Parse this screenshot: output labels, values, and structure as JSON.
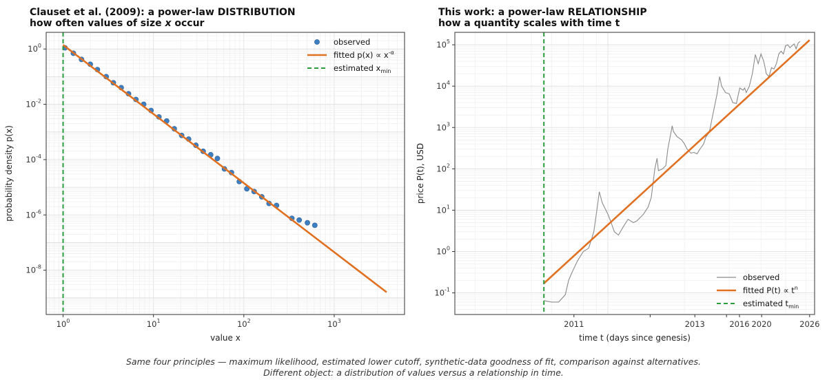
{
  "chart_data": [
    {
      "type": "scatter",
      "title": "Clauset et al. (2009):  a power-law DISTRIBUTION",
      "subtitle": "how often values of size x occur",
      "xlabel": "value  x",
      "ylabel": "probability density  p(x)",
      "xscale": "log",
      "yscale": "log",
      "xlim": [
        0.65,
        6000
      ],
      "ylim": [
        2.5e-10,
        4
      ],
      "x_ticks": [
        1,
        10,
        100,
        1000
      ],
      "x_tick_labels": [
        "10^0",
        "10^1",
        "10^2",
        "10^3"
      ],
      "y_ticks": [
        1,
        0.01,
        0.0001,
        1e-06,
        1e-08
      ],
      "y_tick_labels": [
        "10^0",
        "10^-2",
        "10^-4",
        "10^-6",
        "10^-8"
      ],
      "grid": true,
      "legend_position": "top-right",
      "legend": [
        "observed",
        "fitted  p(x) ∝ x^-α",
        "estimated x_min"
      ],
      "series": [
        {
          "name": "observed",
          "kind": "scatter",
          "color": "#3d7fc0",
          "points": [
            [
              1.05,
              1.1
            ],
            [
              1.3,
              0.7
            ],
            [
              1.6,
              0.42
            ],
            [
              2.0,
              0.28
            ],
            [
              2.4,
              0.18
            ],
            [
              3.0,
              0.1
            ],
            [
              3.6,
              0.06
            ],
            [
              4.4,
              0.04
            ],
            [
              5.3,
              0.024
            ],
            [
              6.4,
              0.015
            ],
            [
              7.8,
              0.01
            ],
            [
              9.4,
              0.006
            ],
            [
              11.5,
              0.0035
            ],
            [
              14,
              0.0025
            ],
            [
              17,
              0.0013
            ],
            [
              20.5,
              0.00075
            ],
            [
              24.5,
              0.00055
            ],
            [
              29.5,
              0.00033
            ],
            [
              35.5,
              0.0002
            ],
            [
              43,
              0.00015
            ],
            [
              51,
              0.00011
            ],
            [
              61,
              4.6e-05
            ],
            [
              73,
              3.4e-05
            ],
            [
              89,
              1.6e-05
            ],
            [
              108,
              8.8e-06
            ],
            [
              130,
              7e-06
            ],
            [
              158,
              4.5e-06
            ],
            [
              190,
              2.6e-06
            ],
            [
              230,
              2.2e-06
            ],
            [
              340,
              7.5e-07
            ],
            [
              410,
              6.5e-07
            ],
            [
              505,
              5.2e-07
            ],
            [
              610,
              4.2e-07
            ]
          ]
        },
        {
          "name": "fitted  p(x) ∝ x^-α",
          "kind": "line",
          "color": "#e07020",
          "x": [
            1.0,
            3800
          ],
          "y": [
            1.4,
            1.6e-09
          ]
        }
      ],
      "vline": {
        "name": "estimated x_min",
        "x": 1.0,
        "color": "#2a9d3a"
      }
    },
    {
      "type": "line",
      "title": "This work:  a power-law RELATIONSHIP",
      "subtitle": "how a quantity scales with time t",
      "xlabel": "time  t  (days since genesis)",
      "ylabel": "price  P(t), USD",
      "xscale": "log",
      "yscale": "log",
      "xlim": [
        250,
        6500
      ],
      "ylim": [
        0.03,
        200000
      ],
      "x_ticks": [
        735,
        1466,
        2197,
        2927,
        3292,
        4023,
        6214
      ],
      "x_tick_labels": [
        "2011",
        "",
        "2013",
        "",
        "2016",
        "2020",
        "2026"
      ],
      "y_ticks": [
        0.1,
        1,
        10,
        100,
        1000,
        10000,
        100000
      ],
      "y_tick_labels": [
        "10^-1",
        "10^0",
        "10^1",
        "10^2",
        "10^3",
        "10^4",
        "10^5"
      ],
      "grid": true,
      "legend_position": "bottom-right",
      "legend": [
        "observed",
        "fitted  P(t) ∝ t^n",
        "estimated t_min"
      ],
      "series": [
        {
          "name": "observed",
          "kind": "line",
          "color": "#8a8a8a",
          "points": [
            [
              560,
              0.065
            ],
            [
              600,
              0.06
            ],
            [
              640,
              0.06
            ],
            [
              680,
              0.09
            ],
            [
              700,
              0.2
            ],
            [
              720,
              0.3
            ],
            [
              760,
              0.6
            ],
            [
              800,
              1.0
            ],
            [
              840,
              1.2
            ],
            [
              880,
              3
            ],
            [
              905,
              10
            ],
            [
              925,
              28
            ],
            [
              950,
              15
            ],
            [
              1000,
              8
            ],
            [
              1030,
              5
            ],
            [
              1060,
              3
            ],
            [
              1100,
              2.5
            ],
            [
              1150,
              4
            ],
            [
              1200,
              6
            ],
            [
              1260,
              5
            ],
            [
              1300,
              5.5
            ],
            [
              1380,
              8
            ],
            [
              1440,
              12
            ],
            [
              1480,
              20
            ],
            [
              1530,
              100
            ],
            [
              1560,
              180
            ],
            [
              1580,
              90
            ],
            [
              1640,
              100
            ],
            [
              1690,
              120
            ],
            [
              1720,
              300
            ],
            [
              1790,
              1100
            ],
            [
              1810,
              800
            ],
            [
              1870,
              600
            ],
            [
              1950,
              500
            ],
            [
              2000,
              400
            ],
            [
              2050,
              300
            ],
            [
              2120,
              240
            ],
            [
              2180,
              250
            ],
            [
              2240,
              230
            ],
            [
              2300,
              300
            ],
            [
              2380,
              400
            ],
            [
              2430,
              600
            ],
            [
              2480,
              700
            ],
            [
              2520,
              900
            ],
            [
              2560,
              1500
            ],
            [
              2620,
              3000
            ],
            [
              2680,
              6000
            ],
            [
              2750,
              17000
            ],
            [
              2800,
              10000
            ],
            [
              2900,
              7000
            ],
            [
              3000,
              6500
            ],
            [
              3100,
              4000
            ],
            [
              3200,
              3800
            ],
            [
              3300,
              9000
            ],
            [
              3400,
              8000
            ],
            [
              3450,
              9000
            ],
            [
              3500,
              7000
            ],
            [
              3600,
              10000
            ],
            [
              3700,
              20000
            ],
            [
              3800,
              58000
            ],
            [
              3900,
              35000
            ],
            [
              4000,
              60000
            ],
            [
              4100,
              40000
            ],
            [
              4200,
              20000
            ],
            [
              4300,
              17000
            ],
            [
              4400,
              28000
            ],
            [
              4500,
              26000
            ],
            [
              4600,
              35000
            ],
            [
              4700,
              60000
            ],
            [
              4800,
              70000
            ],
            [
              4900,
              60000
            ],
            [
              5000,
              95000
            ],
            [
              5100,
              100000
            ],
            [
              5200,
              85000
            ],
            [
              5300,
              95000
            ],
            [
              5400,
              105000
            ],
            [
              5500,
              80000
            ],
            [
              5600,
              110000
            ],
            [
              5700,
              120000
            ]
          ]
        },
        {
          "name": "fitted  P(t) ∝ t^n",
          "kind": "line",
          "color": "#e07020",
          "x": [
            560,
            6214
          ],
          "y": [
            0.17,
            130000
          ]
        }
      ],
      "vline": {
        "name": "estimated t_min",
        "x": 560,
        "color": "#2a9d3a"
      }
    }
  ],
  "caption": {
    "line1": "Same four principles — maximum likelihood, estimated lower cutoff, synthetic-data goodness of fit, comparison against alternatives.",
    "line2": "Different object: a distribution of values versus a relationship in time."
  }
}
